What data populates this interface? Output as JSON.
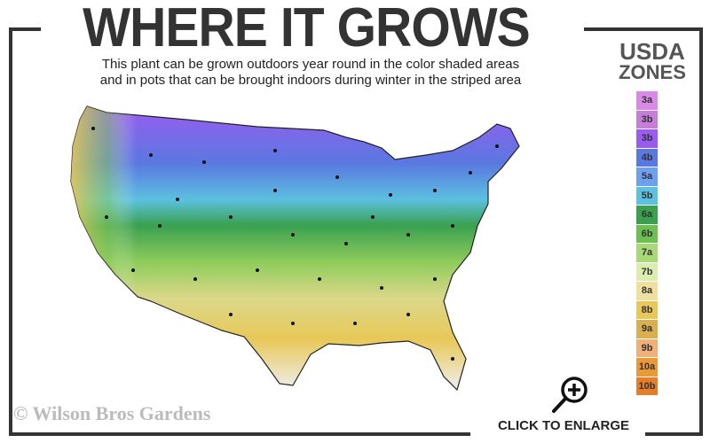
{
  "header": {
    "title": "WHERE IT GROWS",
    "subtitle_line1": "This plant can be grown outdoors year round in the color shaded areas",
    "subtitle_line2": "and in pots that can be brought indoors during winter in the striped area"
  },
  "legend": {
    "title_line1": "USDA",
    "title_line2": "ZONES",
    "zones": [
      {
        "label": "3a",
        "color": "#d98ae8"
      },
      {
        "label": "3b",
        "color": "#c77ed9"
      },
      {
        "label": "3b",
        "color": "#9a5cf0"
      },
      {
        "label": "4b",
        "color": "#5a78e0"
      },
      {
        "label": "5a",
        "color": "#6fa0f0"
      },
      {
        "label": "5b",
        "color": "#5cc0e0"
      },
      {
        "label": "6a",
        "color": "#3aa050"
      },
      {
        "label": "6b",
        "color": "#6cbf50"
      },
      {
        "label": "7a",
        "color": "#a8d878"
      },
      {
        "label": "7b",
        "color": "#dcedb0"
      },
      {
        "label": "8a",
        "color": "#efe0a0"
      },
      {
        "label": "8b",
        "color": "#e8c858"
      },
      {
        "label": "9a",
        "color": "#d9b050"
      },
      {
        "label": "9b",
        "color": "#f0b078"
      },
      {
        "label": "10a",
        "color": "#ea9838"
      },
      {
        "label": "10b",
        "color": "#e47e28"
      }
    ]
  },
  "footer": {
    "copyright": "© Wilson Bros Gardens",
    "enlarge_label": "CLICK TO ENLARGE",
    "enlarge_icon": "zoom-in-magnifier-icon"
  }
}
